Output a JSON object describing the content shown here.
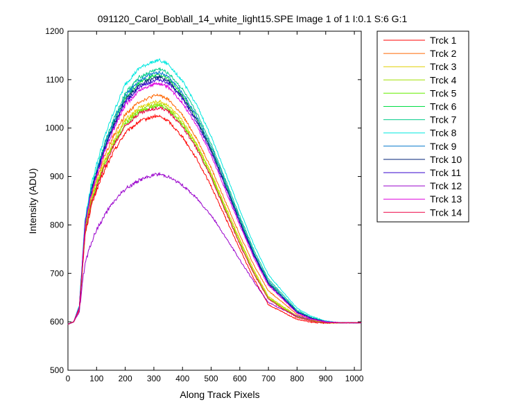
{
  "chart_data": {
    "type": "line",
    "title": "091120_Carol_Bob\\all_14_white_light15.SPE  Image 1 of 1  I:0.1  S:6  G:1",
    "xlabel": "Along Track Pixels",
    "ylabel": "Intensity (ADU)",
    "xlim": [
      0,
      1024
    ],
    "ylim": [
      500,
      1200
    ],
    "xticks": [
      0,
      100,
      200,
      300,
      400,
      500,
      600,
      700,
      800,
      900,
      1000
    ],
    "yticks": [
      500,
      600,
      700,
      800,
      900,
      1000,
      1100,
      1200
    ],
    "grid": false,
    "legend_position": "outside-right",
    "x_samples": [
      0,
      20,
      40,
      50,
      60,
      80,
      100,
      130,
      160,
      200,
      250,
      300,
      320,
      350,
      400,
      450,
      500,
      550,
      600,
      650,
      700,
      750,
      800,
      850,
      900,
      950,
      1000,
      1024
    ],
    "series": [
      {
        "name": "Trck 1",
        "color": "#ff0000",
        "peak": 1025,
        "start": 790,
        "values": [
          595,
          600,
          625,
          700,
          780,
          835,
          872,
          915,
          952,
          990,
          1014,
          1024,
          1024,
          1015,
          982,
          936,
          880,
          815,
          750,
          688,
          635,
          620,
          605,
          599,
          597,
          598,
          598,
          598
        ]
      },
      {
        "name": "Trck 2",
        "color": "#ff6600",
        "peak": 1068,
        "start": 805,
        "values": [
          595,
          600,
          630,
          715,
          795,
          855,
          895,
          945,
          985,
          1028,
          1055,
          1066,
          1068,
          1060,
          1026,
          978,
          918,
          848,
          780,
          716,
          664,
          640,
          615,
          604,
          599,
          598,
          598,
          598
        ]
      },
      {
        "name": "Trck 3",
        "color": "#e0d000",
        "peak": 1055,
        "start": 800,
        "values": [
          595,
          600,
          630,
          712,
          790,
          850,
          888,
          935,
          975,
          1017,
          1043,
          1053,
          1055,
          1047,
          1015,
          968,
          908,
          838,
          770,
          706,
          652,
          632,
          612,
          603,
          598,
          598,
          598,
          598
        ]
      },
      {
        "name": "Trck 4",
        "color": "#a0e000",
        "peak": 1050,
        "start": 800,
        "values": [
          595,
          600,
          628,
          710,
          788,
          846,
          884,
          930,
          970,
          1012,
          1038,
          1048,
          1050,
          1042,
          1010,
          964,
          904,
          834,
          766,
          702,
          650,
          630,
          611,
          602,
          598,
          598,
          598,
          598
        ]
      },
      {
        "name": "Trck 5",
        "color": "#66ee00",
        "peak": 1045,
        "start": 800,
        "values": [
          595,
          600,
          628,
          708,
          786,
          843,
          880,
          926,
          966,
          1008,
          1034,
          1043,
          1045,
          1038,
          1006,
          960,
          900,
          830,
          762,
          699,
          648,
          628,
          610,
          602,
          598,
          598,
          598,
          598
        ]
      },
      {
        "name": "Trck 6",
        "color": "#00dd44",
        "peak": 1110,
        "start": 815,
        "values": [
          595,
          600,
          632,
          720,
          805,
          868,
          910,
          965,
          1010,
          1062,
          1094,
          1108,
          1110,
          1102,
          1068,
          1020,
          958,
          885,
          810,
          740,
          682,
          652,
          622,
          608,
          600,
          598,
          598,
          598
        ]
      },
      {
        "name": "Trck 7",
        "color": "#00cc88",
        "peak": 1122,
        "start": 820,
        "values": [
          595,
          600,
          633,
          722,
          808,
          872,
          915,
          972,
          1018,
          1072,
          1105,
          1119,
          1122,
          1114,
          1080,
          1031,
          968,
          894,
          818,
          747,
          688,
          656,
          624,
          609,
          601,
          598,
          598,
          598
        ]
      },
      {
        "name": "Trck 8",
        "color": "#00e8e0",
        "peak": 1140,
        "start": 825,
        "values": [
          595,
          600,
          635,
          725,
          812,
          880,
          925,
          985,
          1033,
          1090,
          1124,
          1138,
          1140,
          1132,
          1097,
          1047,
          983,
          908,
          831,
          758,
          697,
          662,
          628,
          611,
          602,
          598,
          598,
          598
        ]
      },
      {
        "name": "Trck 9",
        "color": "#0077cc",
        "peak": 1115,
        "start": 815,
        "values": [
          595,
          600,
          632,
          720,
          806,
          870,
          912,
          968,
          1014,
          1067,
          1099,
          1113,
          1115,
          1107,
          1073,
          1024,
          962,
          889,
          813,
          742,
          684,
          653,
          622,
          608,
          600,
          598,
          598,
          598
        ]
      },
      {
        "name": "Trck 10",
        "color": "#002277",
        "peak": 1105,
        "start": 812,
        "values": [
          595,
          600,
          631,
          718,
          803,
          866,
          907,
          962,
          1007,
          1058,
          1089,
          1103,
          1105,
          1098,
          1064,
          1016,
          955,
          882,
          807,
          738,
          680,
          650,
          620,
          607,
          600,
          598,
          598,
          598
        ]
      },
      {
        "name": "Trck 11",
        "color": "#3300cc",
        "peak": 1100,
        "start": 810,
        "values": [
          595,
          600,
          630,
          717,
          801,
          864,
          904,
          958,
          1003,
          1053,
          1085,
          1098,
          1100,
          1093,
          1060,
          1012,
          951,
          878,
          804,
          735,
          678,
          649,
          619,
          606,
          600,
          598,
          598,
          598
        ]
      },
      {
        "name": "Trck 12",
        "color": "#9900cc",
        "peak": 905,
        "start": 720,
        "values": [
          595,
          600,
          620,
          680,
          720,
          760,
          790,
          822,
          848,
          874,
          893,
          903,
          905,
          900,
          882,
          855,
          820,
          775,
          728,
          682,
          640,
          625,
          612,
          605,
          600,
          598,
          598,
          598
        ]
      },
      {
        "name": "Trck 13",
        "color": "#dd00dd",
        "peak": 1092,
        "start": 808,
        "values": [
          595,
          600,
          630,
          716,
          799,
          861,
          900,
          954,
          998,
          1047,
          1078,
          1091,
          1092,
          1085,
          1052,
          1005,
          944,
          872,
          799,
          731,
          675,
          647,
          618,
          606,
          600,
          598,
          598,
          598
        ]
      },
      {
        "name": "Trck 14",
        "color": "#ee0044",
        "peak": 1042,
        "start": 798,
        "values": [
          595,
          600,
          627,
          707,
          785,
          842,
          879,
          924,
          964,
          1005,
          1031,
          1040,
          1042,
          1035,
          1003,
          957,
          898,
          828,
          760,
          698,
          647,
          627,
          609,
          602,
          598,
          598,
          598,
          598
        ]
      }
    ]
  }
}
